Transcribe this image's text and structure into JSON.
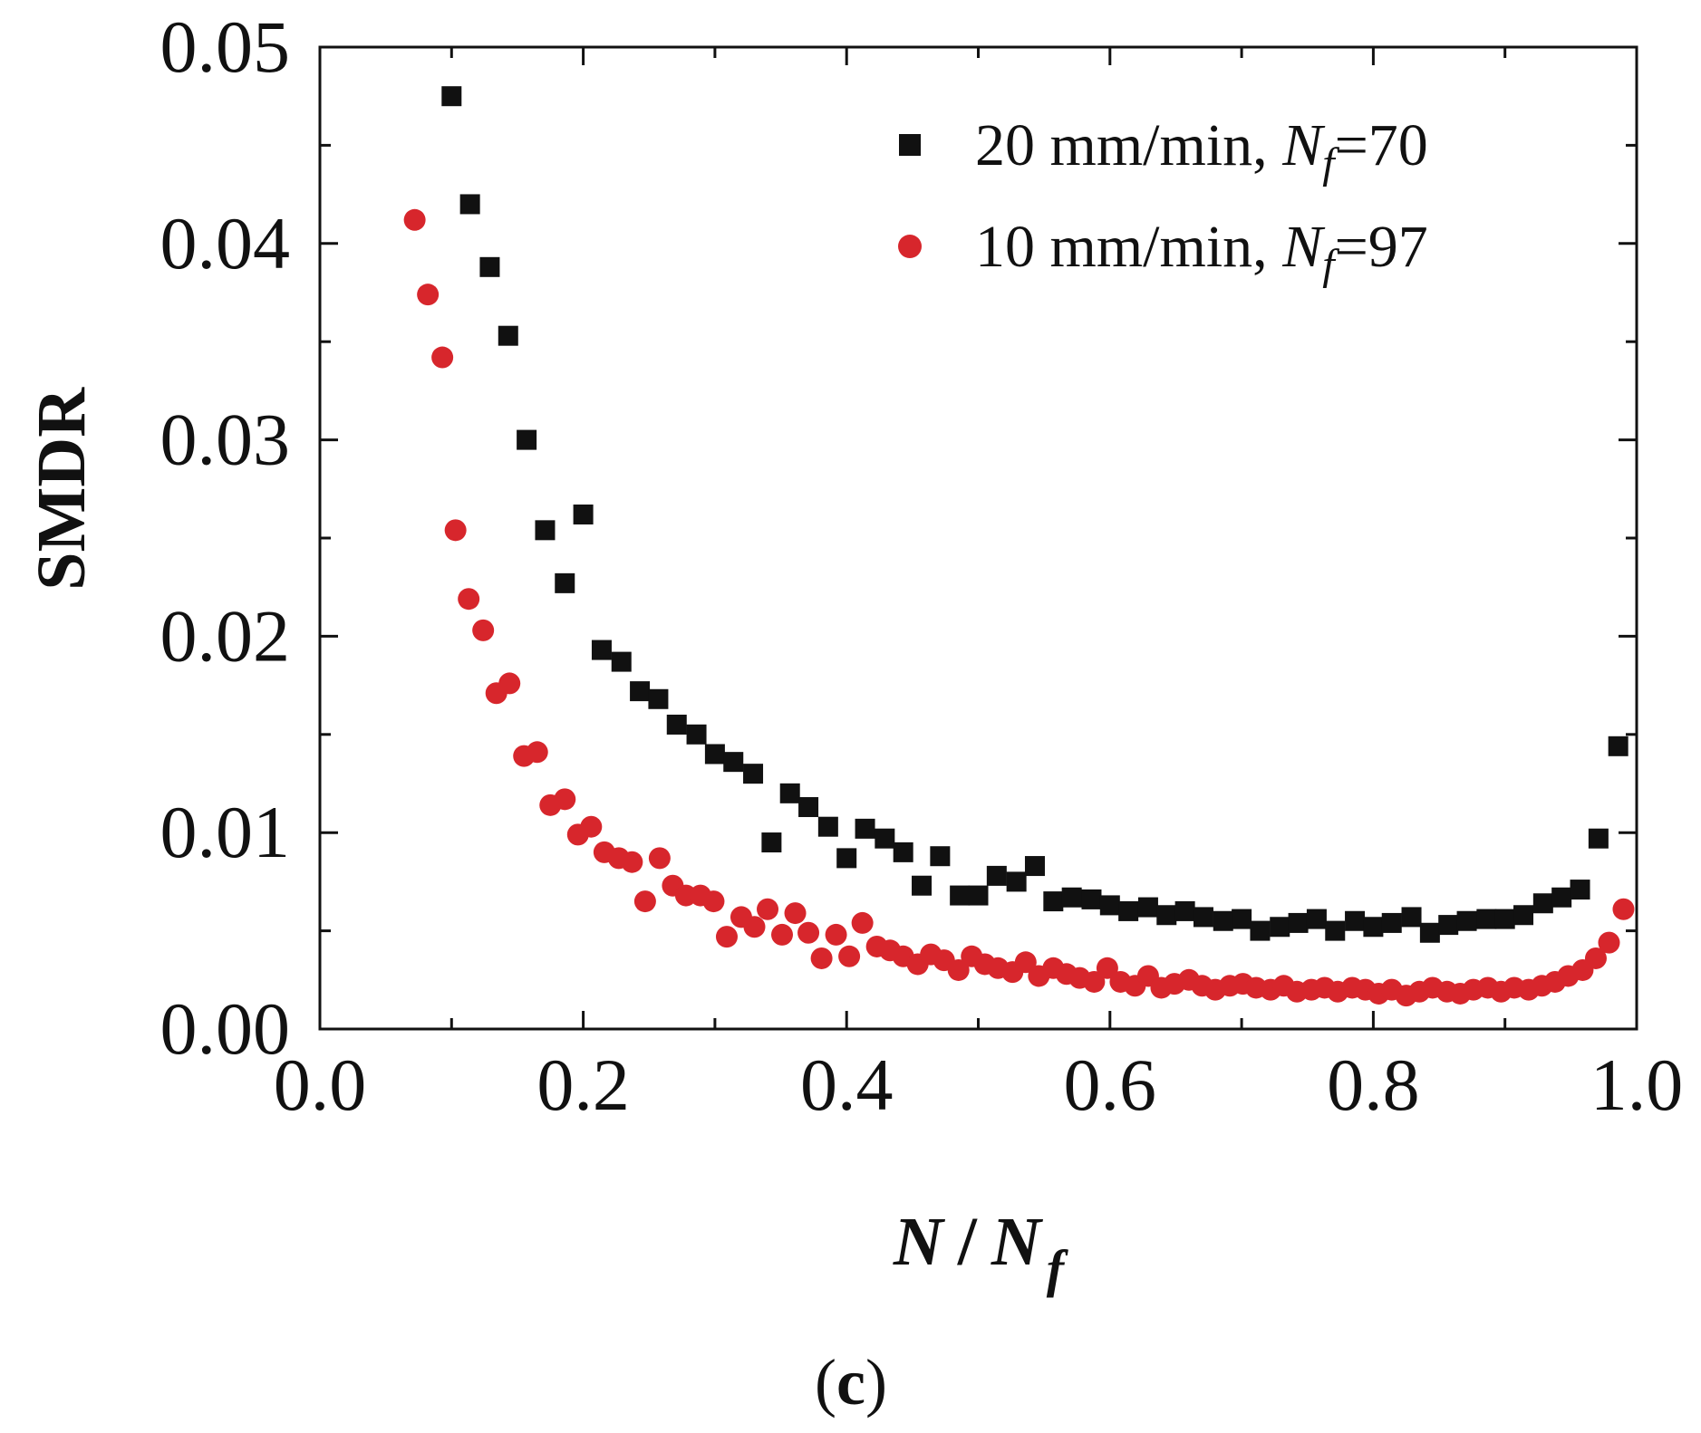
{
  "chart_data": {
    "type": "scatter",
    "title": "",
    "xlabel": "N / N_f",
    "xlabel_parts": {
      "main": "N",
      "slash": "/",
      "sub_main": "N",
      "subscript": "f"
    },
    "ylabel": "SMDR",
    "xlim": [
      0.0,
      1.0
    ],
    "ylim": [
      0.0,
      0.05
    ],
    "xticks": [
      "0.0",
      "0.2",
      "0.4",
      "0.6",
      "0.8",
      "1.0"
    ],
    "yticks": [
      "0.00",
      "0.01",
      "0.02",
      "0.03",
      "0.04",
      "0.05"
    ],
    "legend_position": "top-right",
    "caption": "(c)",
    "series": [
      {
        "name": "20 mm/min, N_f=70",
        "legend_label": {
          "prefix": "20 mm/min, ",
          "var": "N",
          "sub": "f",
          "suffix": "=70"
        },
        "marker": "square",
        "color": "#111111",
        "points": [
          [
            0.1,
            0.0475
          ],
          [
            0.114,
            0.042
          ],
          [
            0.129,
            0.0388
          ],
          [
            0.143,
            0.0353
          ],
          [
            0.157,
            0.03
          ],
          [
            0.171,
            0.0254
          ],
          [
            0.186,
            0.0227
          ],
          [
            0.2,
            0.0262
          ],
          [
            0.214,
            0.0193
          ],
          [
            0.229,
            0.0187
          ],
          [
            0.243,
            0.0172
          ],
          [
            0.257,
            0.0168
          ],
          [
            0.271,
            0.0155
          ],
          [
            0.286,
            0.015
          ],
          [
            0.3,
            0.014
          ],
          [
            0.314,
            0.0136
          ],
          [
            0.329,
            0.013
          ],
          [
            0.343,
            0.0095
          ],
          [
            0.357,
            0.012
          ],
          [
            0.371,
            0.0113
          ],
          [
            0.386,
            0.0103
          ],
          [
            0.4,
            0.0087
          ],
          [
            0.414,
            0.0102
          ],
          [
            0.429,
            0.0097
          ],
          [
            0.443,
            0.009
          ],
          [
            0.457,
            0.0073
          ],
          [
            0.471,
            0.0088
          ],
          [
            0.486,
            0.0068
          ],
          [
            0.5,
            0.0068
          ],
          [
            0.514,
            0.0078
          ],
          [
            0.529,
            0.0075
          ],
          [
            0.543,
            0.0083
          ],
          [
            0.557,
            0.0065
          ],
          [
            0.571,
            0.0067
          ],
          [
            0.586,
            0.0066
          ],
          [
            0.6,
            0.0063
          ],
          [
            0.614,
            0.006
          ],
          [
            0.629,
            0.0062
          ],
          [
            0.643,
            0.0058
          ],
          [
            0.657,
            0.006
          ],
          [
            0.671,
            0.0057
          ],
          [
            0.686,
            0.0055
          ],
          [
            0.7,
            0.0056
          ],
          [
            0.714,
            0.005
          ],
          [
            0.729,
            0.0052
          ],
          [
            0.743,
            0.0054
          ],
          [
            0.757,
            0.0056
          ],
          [
            0.771,
            0.005
          ],
          [
            0.786,
            0.0055
          ],
          [
            0.8,
            0.0052
          ],
          [
            0.814,
            0.0054
          ],
          [
            0.829,
            0.0057
          ],
          [
            0.843,
            0.0049
          ],
          [
            0.857,
            0.0053
          ],
          [
            0.871,
            0.0055
          ],
          [
            0.886,
            0.0056
          ],
          [
            0.9,
            0.0056
          ],
          [
            0.914,
            0.0058
          ],
          [
            0.929,
            0.0064
          ],
          [
            0.943,
            0.0067
          ],
          [
            0.957,
            0.0071
          ],
          [
            0.971,
            0.0097
          ],
          [
            0.986,
            0.0144
          ]
        ]
      },
      {
        "name": "10 mm/min, N_f=97",
        "legend_label": {
          "prefix": "10 mm/min, ",
          "var": "N",
          "sub": "f",
          "suffix": "=97"
        },
        "marker": "circle",
        "color": "#d7262c",
        "points": [
          [
            0.072,
            0.0412
          ],
          [
            0.082,
            0.0374
          ],
          [
            0.093,
            0.0342
          ],
          [
            0.103,
            0.0254
          ],
          [
            0.113,
            0.0219
          ],
          [
            0.124,
            0.0203
          ],
          [
            0.134,
            0.0171
          ],
          [
            0.144,
            0.0176
          ],
          [
            0.155,
            0.0139
          ],
          [
            0.165,
            0.0141
          ],
          [
            0.175,
            0.0114
          ],
          [
            0.186,
            0.0117
          ],
          [
            0.196,
            0.0099
          ],
          [
            0.206,
            0.0103
          ],
          [
            0.216,
            0.009
          ],
          [
            0.227,
            0.0087
          ],
          [
            0.237,
            0.0085
          ],
          [
            0.247,
            0.0065
          ],
          [
            0.258,
            0.0087
          ],
          [
            0.268,
            0.0073
          ],
          [
            0.278,
            0.0068
          ],
          [
            0.289,
            0.0068
          ],
          [
            0.299,
            0.0065
          ],
          [
            0.309,
            0.0047
          ],
          [
            0.32,
            0.0057
          ],
          [
            0.33,
            0.0052
          ],
          [
            0.34,
            0.0061
          ],
          [
            0.351,
            0.0048
          ],
          [
            0.361,
            0.0059
          ],
          [
            0.371,
            0.0049
          ],
          [
            0.381,
            0.0036
          ],
          [
            0.392,
            0.0048
          ],
          [
            0.402,
            0.0037
          ],
          [
            0.412,
            0.0054
          ],
          [
            0.423,
            0.0042
          ],
          [
            0.433,
            0.004
          ],
          [
            0.443,
            0.0037
          ],
          [
            0.454,
            0.0033
          ],
          [
            0.464,
            0.0038
          ],
          [
            0.474,
            0.0035
          ],
          [
            0.485,
            0.003
          ],
          [
            0.495,
            0.0037
          ],
          [
            0.505,
            0.0033
          ],
          [
            0.515,
            0.0031
          ],
          [
            0.526,
            0.0029
          ],
          [
            0.536,
            0.0034
          ],
          [
            0.546,
            0.0027
          ],
          [
            0.557,
            0.0031
          ],
          [
            0.567,
            0.0028
          ],
          [
            0.577,
            0.0026
          ],
          [
            0.588,
            0.0024
          ],
          [
            0.598,
            0.0031
          ],
          [
            0.608,
            0.0024
          ],
          [
            0.619,
            0.0022
          ],
          [
            0.629,
            0.0027
          ],
          [
            0.639,
            0.0021
          ],
          [
            0.649,
            0.0023
          ],
          [
            0.66,
            0.0025
          ],
          [
            0.67,
            0.0022
          ],
          [
            0.68,
            0.002
          ],
          [
            0.691,
            0.0022
          ],
          [
            0.701,
            0.0023
          ],
          [
            0.711,
            0.0021
          ],
          [
            0.722,
            0.002
          ],
          [
            0.732,
            0.0022
          ],
          [
            0.742,
            0.0019
          ],
          [
            0.753,
            0.002
          ],
          [
            0.763,
            0.0021
          ],
          [
            0.773,
            0.0019
          ],
          [
            0.784,
            0.0021
          ],
          [
            0.794,
            0.002
          ],
          [
            0.804,
            0.0018
          ],
          [
            0.814,
            0.002
          ],
          [
            0.825,
            0.0017
          ],
          [
            0.835,
            0.0019
          ],
          [
            0.845,
            0.0021
          ],
          [
            0.856,
            0.0019
          ],
          [
            0.866,
            0.0018
          ],
          [
            0.876,
            0.002
          ],
          [
            0.887,
            0.0021
          ],
          [
            0.897,
            0.0019
          ],
          [
            0.907,
            0.0021
          ],
          [
            0.918,
            0.002
          ],
          [
            0.928,
            0.0022
          ],
          [
            0.938,
            0.0024
          ],
          [
            0.948,
            0.0027
          ],
          [
            0.959,
            0.003
          ],
          [
            0.969,
            0.0036
          ],
          [
            0.979,
            0.0044
          ],
          [
            0.99,
            0.0061
          ]
        ]
      }
    ]
  }
}
